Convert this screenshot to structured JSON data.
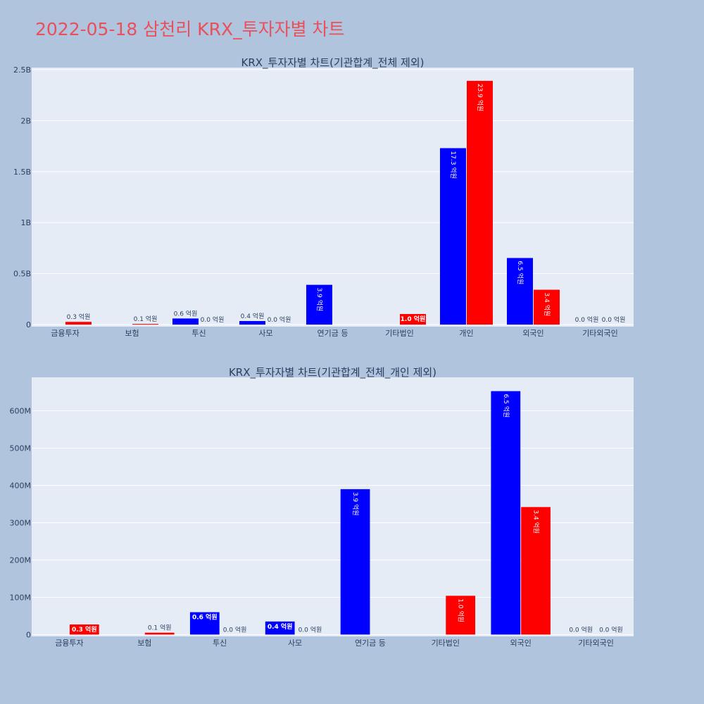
{
  "title": "2022-05-18 삼천리 KRX_투자자별 차트",
  "colors": {
    "page_bg": "#b0c4de",
    "plot_bg": "#e5ecf6",
    "title": "#e8505b",
    "buy": "#0000ff",
    "sell": "#ff0000",
    "text": "#2a3f5f"
  },
  "chart_data": [
    {
      "type": "bar",
      "title": "KRX_투자자별 차트(기관합계_전체 제외)",
      "categories": [
        "금융투자",
        "보험",
        "투신",
        "사모",
        "연기금 등",
        "기타법인",
        "개인",
        "외국인",
        "기타외국인"
      ],
      "series": [
        {
          "color": "#0000ff",
          "values": [
            0,
            0,
            60000000,
            35000000,
            390000000,
            0,
            1730000000,
            653000000,
            0
          ],
          "labels": [
            "",
            "",
            "0.6 억원",
            "0.4 억원",
            "3.9 억원",
            "",
            "17.3 억원",
            "6.5 억원",
            "0.0 억원"
          ]
        },
        {
          "color": "#ff0000",
          "values": [
            27000000,
            5000000,
            0,
            0,
            0,
            104000000,
            2390000000,
            342000000,
            0
          ],
          "labels": [
            "0.3 억원",
            "0.1 억원",
            "0.0 억원",
            "0.0 억원",
            "",
            "1.0 억원",
            "23.9 억원",
            "3.4 억원",
            "0.0 억원"
          ]
        }
      ],
      "yticks": [
        0,
        500000000,
        1000000000,
        1500000000,
        2000000000,
        2500000000
      ],
      "ytick_labels": [
        "0",
        "0.5B",
        "1B",
        "1.5B",
        "2B",
        "2.5B"
      ],
      "ylim": [
        -20000000,
        2520000000
      ],
      "grid": true,
      "legend": "none"
    },
    {
      "type": "bar",
      "title": "KRX_투자자별 차트(기관합계_전체_개인 제외)",
      "categories": [
        "금융투자",
        "보험",
        "투신",
        "사모",
        "연기금 등",
        "기타법인",
        "외국인",
        "기타외국인"
      ],
      "series": [
        {
          "color": "#0000ff",
          "values": [
            0,
            0,
            60000000,
            35000000,
            390000000,
            0,
            653000000,
            0
          ],
          "labels": [
            "",
            "",
            "0.6 억원",
            "0.4 억원",
            "3.9 억원",
            "",
            "6.5 억원",
            "0.0 억원"
          ]
        },
        {
          "color": "#ff0000",
          "values": [
            27000000,
            5000000,
            0,
            0,
            0,
            104000000,
            342000000,
            0
          ],
          "labels": [
            "0.3 억원",
            "0.1 억원",
            "0.0 억원",
            "0.0 억원",
            "",
            "1.0 억원",
            "3.4 억원",
            "0.0 억원"
          ]
        }
      ],
      "yticks": [
        0,
        100000000,
        200000000,
        300000000,
        400000000,
        500000000,
        600000000
      ],
      "ytick_labels": [
        "0",
        "100M",
        "200M",
        "300M",
        "400M",
        "500M",
        "600M"
      ],
      "ylim": [
        -5000000,
        690000000
      ],
      "grid": true,
      "legend": "none"
    }
  ]
}
